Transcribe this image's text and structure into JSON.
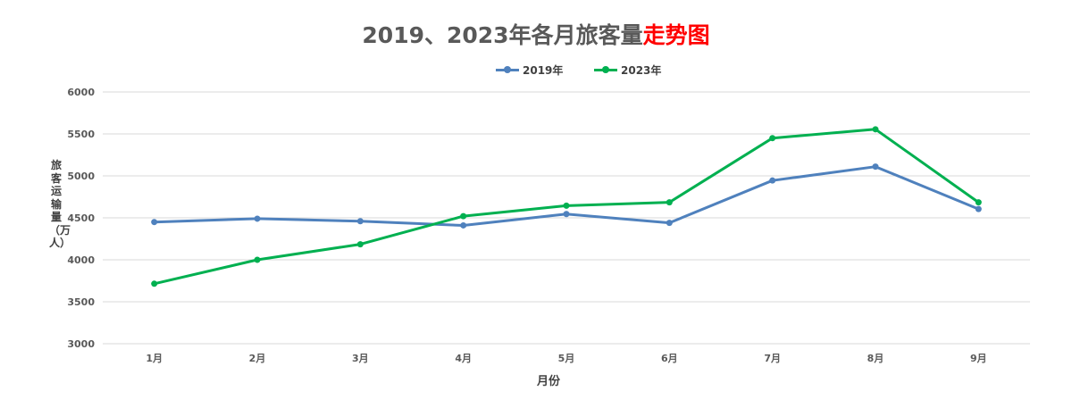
{
  "chart_data": {
    "type": "line",
    "title": "2019、2023年各月旅客量",
    "title_highlight": "走势图",
    "title_highlight_color": "#ff0000",
    "xlabel": "月份",
    "ylabel": "旅客运输量（万人）",
    "categories": [
      "1月",
      "2月",
      "3月",
      "4月",
      "5月",
      "6月",
      "7月",
      "8月",
      "9月"
    ],
    "series": [
      {
        "name": "2019年",
        "color": "#4f81bd",
        "values": [
          4450,
          4490,
          4460,
          4410,
          4545,
          4440,
          4945,
          5110,
          4605
        ]
      },
      {
        "name": "2023年",
        "color": "#00b050",
        "values": [
          3715,
          4000,
          4185,
          4520,
          4645,
          4685,
          5450,
          5555,
          4685
        ]
      }
    ],
    "ylim": [
      3000,
      6000
    ],
    "yticks": [
      "3000",
      "3500",
      "4000",
      "4500",
      "5000",
      "5500",
      "6000"
    ],
    "grid": true,
    "legend_position": "top"
  }
}
